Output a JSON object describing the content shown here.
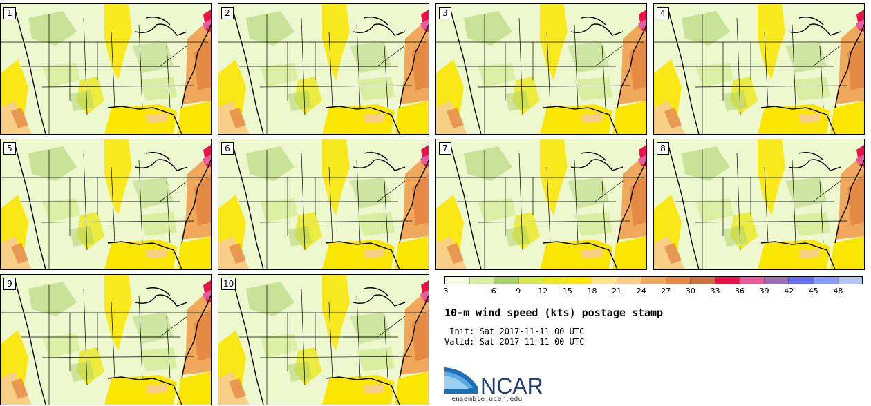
{
  "stamps": [
    {
      "label": "1"
    },
    {
      "label": "2"
    },
    {
      "label": "3"
    },
    {
      "label": "4"
    },
    {
      "label": "5"
    },
    {
      "label": "6"
    },
    {
      "label": "7"
    },
    {
      "label": "8"
    },
    {
      "label": "9"
    },
    {
      "label": "10"
    }
  ],
  "colorbar": {
    "ticks": [
      "3",
      "6",
      "9",
      "12",
      "15",
      "18",
      "21",
      "24",
      "27",
      "30",
      "33",
      "36",
      "39",
      "42",
      "45",
      "48"
    ],
    "colors": [
      "#f4fbe1",
      "#d9eea0",
      "#a9d06a",
      "#d7e84e",
      "#ebe91c",
      "#fae600",
      "#fbe58c",
      "#f7cf86",
      "#f0a95c",
      "#e48a45",
      "#c9733f",
      "#e8134b",
      "#e45c9e",
      "#9b6fb0",
      "#6a6ef0",
      "#8b9af6",
      "#b7c5f5"
    ]
  },
  "title": "10-m wind speed (kts) postage stamp",
  "init_text": " Init: Sat 2017-11-11 00 UTC",
  "valid_text": "Valid: Sat 2017-11-11 00 UTC",
  "logo": {
    "text": "NCAR",
    "url": "ensemble.ucar.edu"
  }
}
